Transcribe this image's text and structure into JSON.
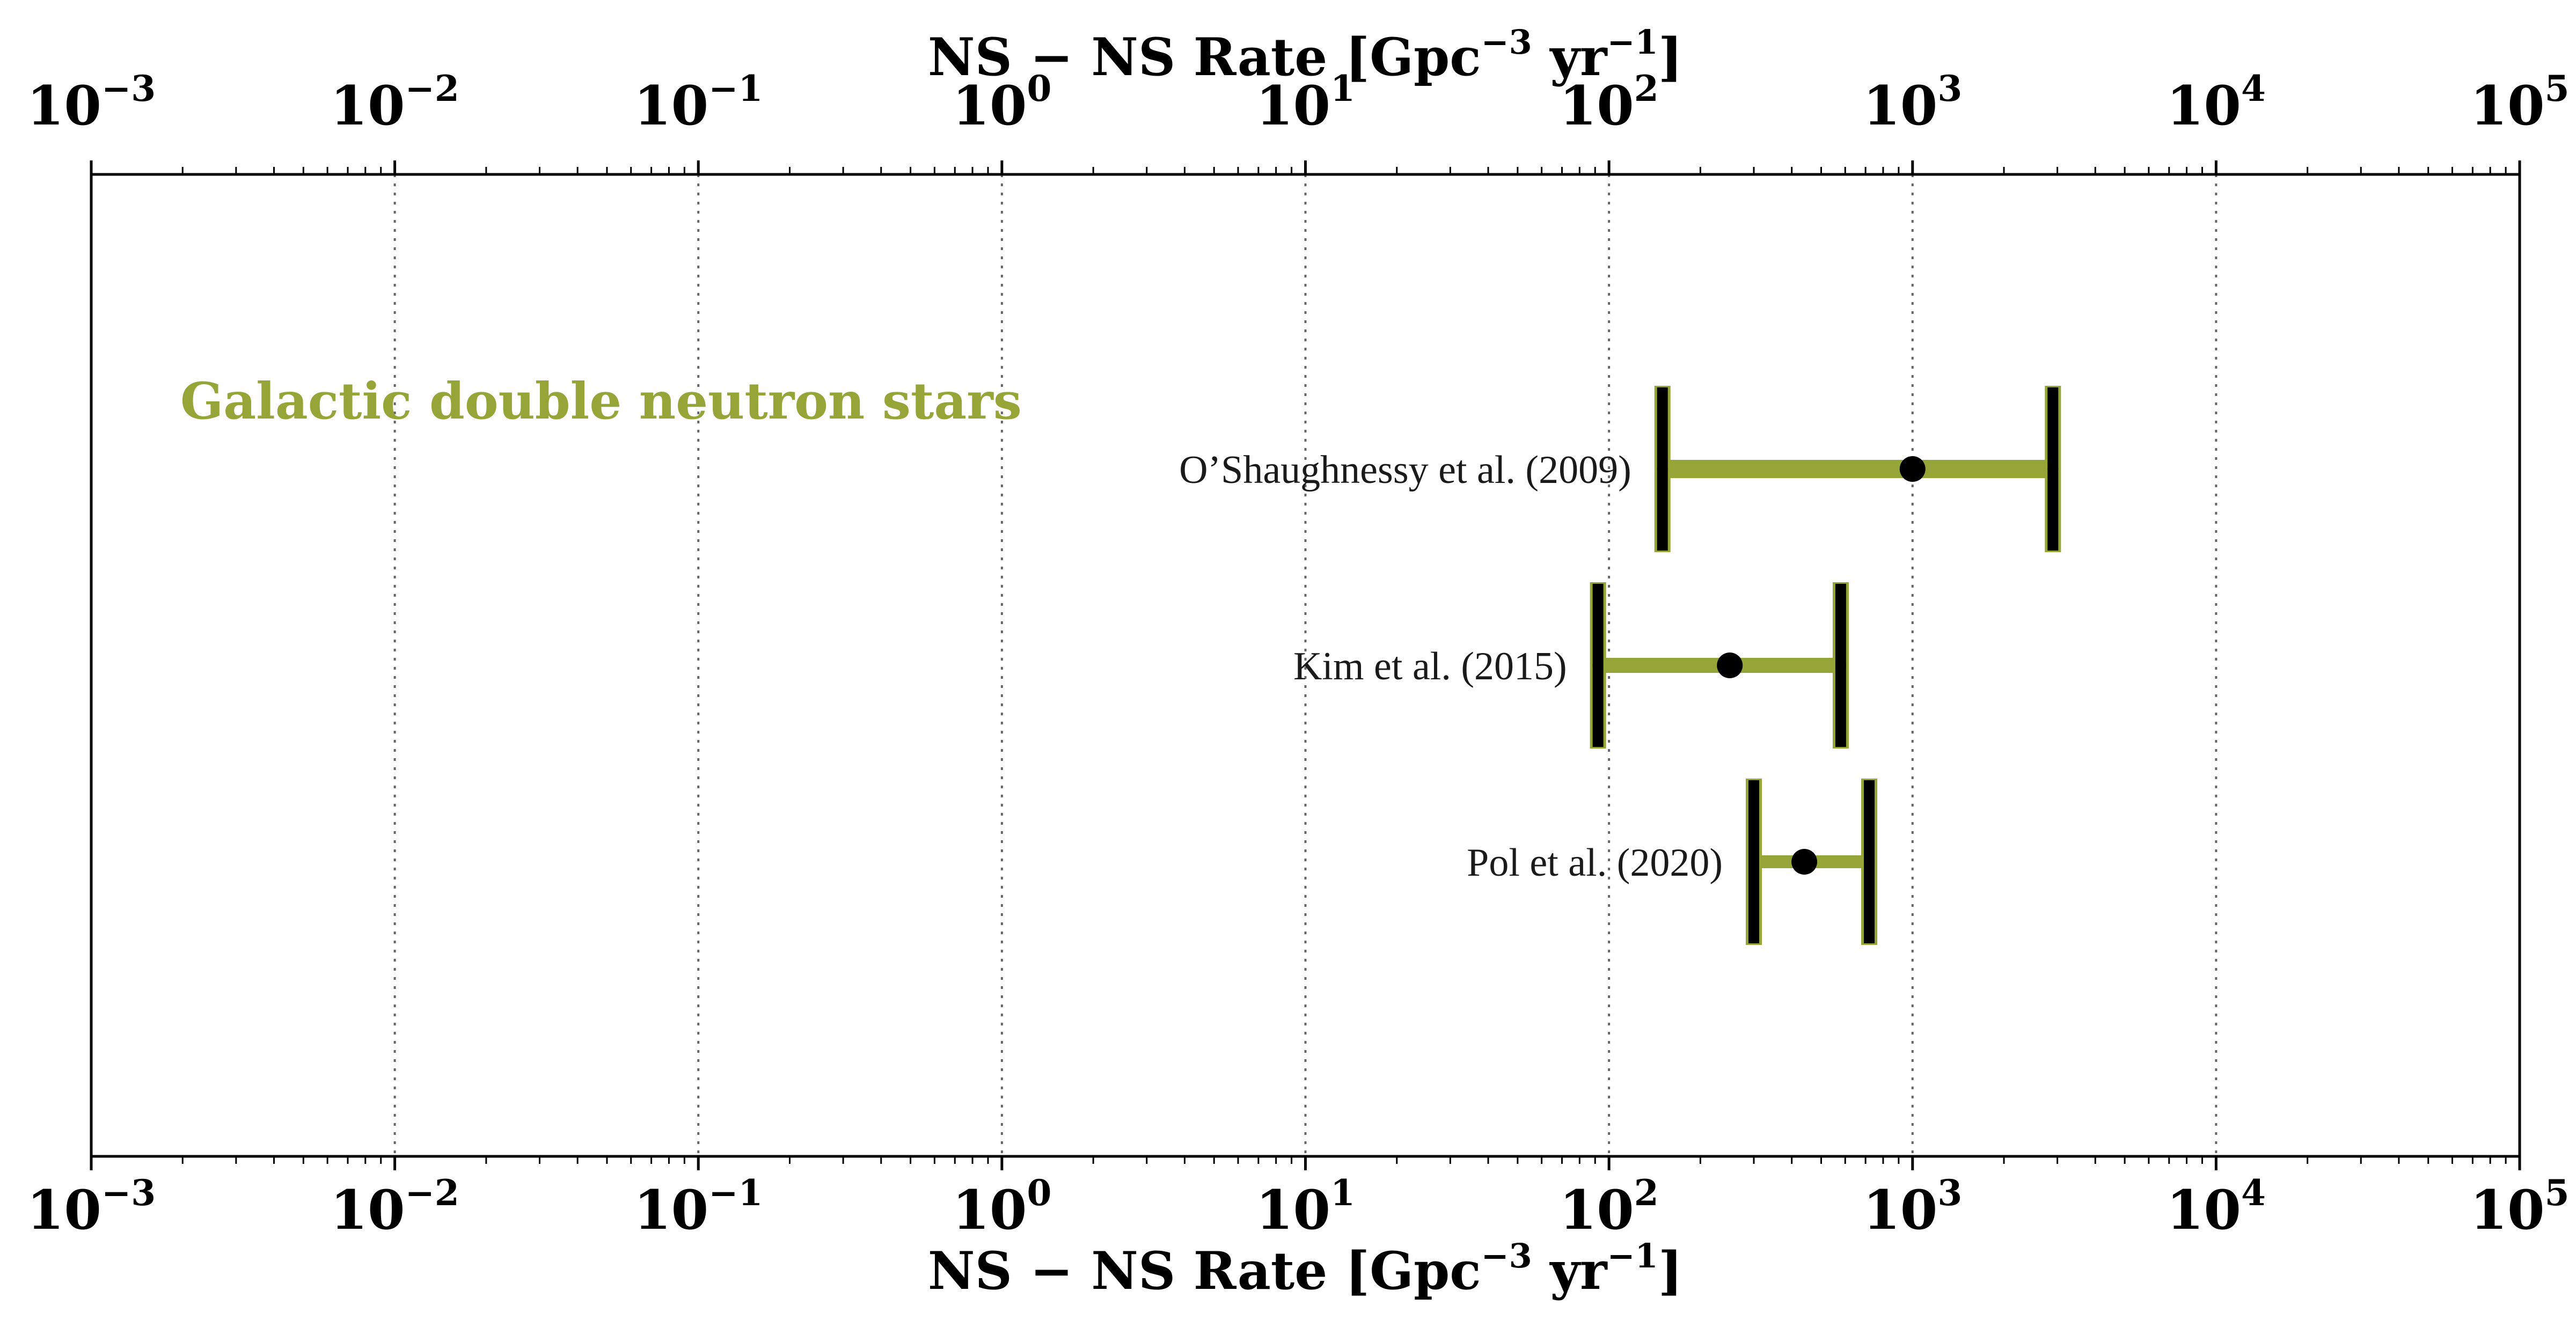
{
  "chart_data": {
    "type": "errorbar",
    "x_scale": "log",
    "xlim": [
      0.001,
      100000
    ],
    "grid": "vertical dotted lines at major ticks",
    "xlabel": {
      "main": "NS − NS  Rate [Gpc",
      "sup1": "−3",
      "mid": " yr",
      "sup2": "−1",
      "end": "]"
    },
    "x2label": {
      "main": "NS − NS  Rate [Gpc",
      "sup1": "−3",
      "mid": " yr",
      "sup2": "−1",
      "end": "]"
    },
    "tick_labels": [
      {
        "value": 0.001,
        "base": "10",
        "exp": "−3"
      },
      {
        "value": 0.01,
        "base": "10",
        "exp": "−2"
      },
      {
        "value": 0.1,
        "base": "10",
        "exp": "−1"
      },
      {
        "value": 1,
        "base": "10",
        "exp": "0"
      },
      {
        "value": 10,
        "base": "10",
        "exp": "1"
      },
      {
        "value": 100,
        "base": "10",
        "exp": "2"
      },
      {
        "value": 1000,
        "base": "10",
        "exp": "3"
      },
      {
        "value": 10000,
        "base": "10",
        "exp": "4"
      },
      {
        "value": 100000,
        "base": "10",
        "exp": "5"
      }
    ],
    "group_label": "Galactic double neutron stars",
    "group_color": "#95a537",
    "entries": [
      {
        "label": "O’Shaughnessy et al. (2009)",
        "low": 150,
        "value": 1000,
        "high": 2900
      },
      {
        "label": "Kim et al. (2015)",
        "low": 92,
        "value": 250,
        "high": 580
      },
      {
        "label": "Pol et al. (2020)",
        "low": 300,
        "value": 440,
        "high": 720
      }
    ]
  }
}
